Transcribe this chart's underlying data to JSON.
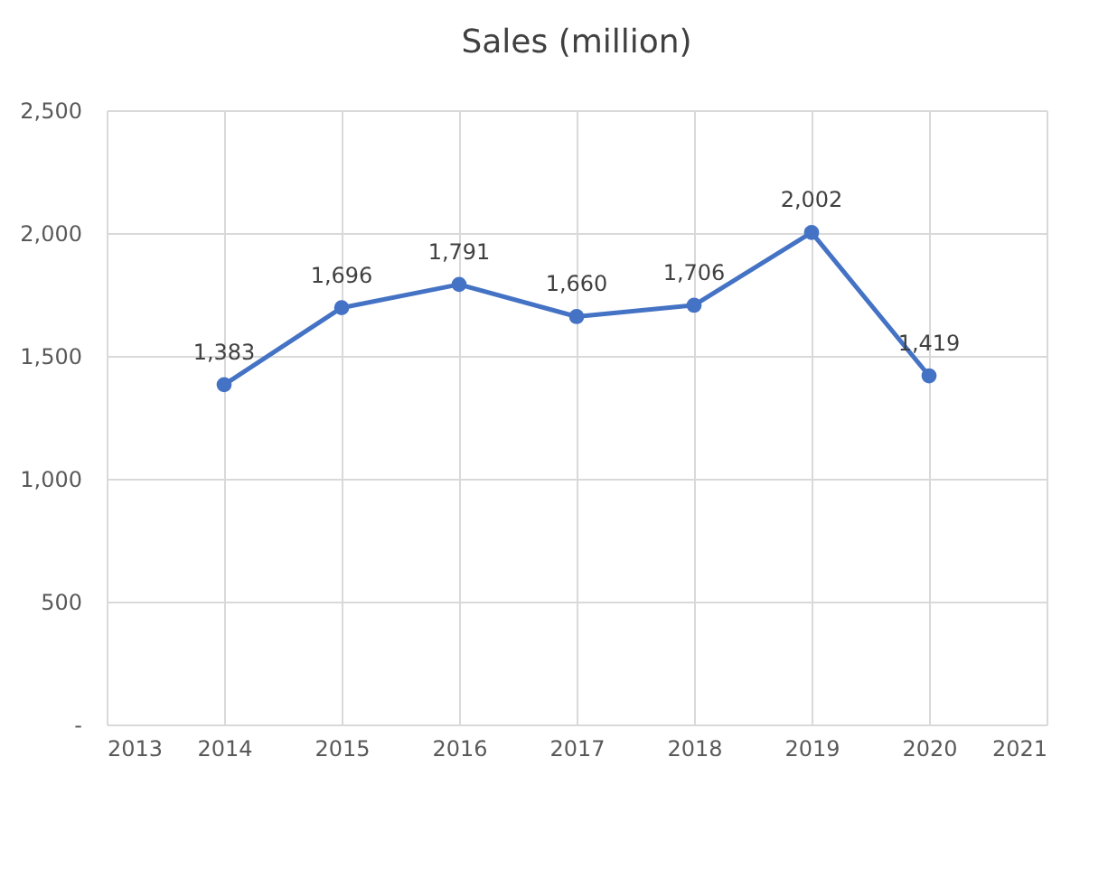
{
  "chart_data": {
    "type": "line",
    "title": "Sales (million)",
    "x": [
      2014,
      2015,
      2016,
      2017,
      2018,
      2019,
      2020
    ],
    "series": [
      {
        "color": "#4472c4",
        "values": [
          1383,
          1696,
          1791,
          1660,
          1706,
          2002,
          1419
        ],
        "value_labels": [
          "1,383",
          "1,696",
          "1,791",
          "1,660",
          "1,706",
          "2,002",
          "1,419"
        ]
      }
    ],
    "xlim": [
      2013,
      2021
    ],
    "xticks": [
      2013,
      2014,
      2015,
      2016,
      2017,
      2018,
      2019,
      2020,
      2021
    ],
    "ylim": [
      0,
      2500
    ],
    "yticks": [
      {
        "value": 0,
        "label": "-"
      },
      500,
      {
        "value": 1000,
        "label": "1,000"
      },
      {
        "value": 1500,
        "label": "1,500"
      },
      {
        "value": 2000,
        "label": "2,000"
      },
      {
        "value": 2500,
        "label": "2,500"
      }
    ],
    "grid": true,
    "marker": "circle",
    "line_style": "solid"
  }
}
